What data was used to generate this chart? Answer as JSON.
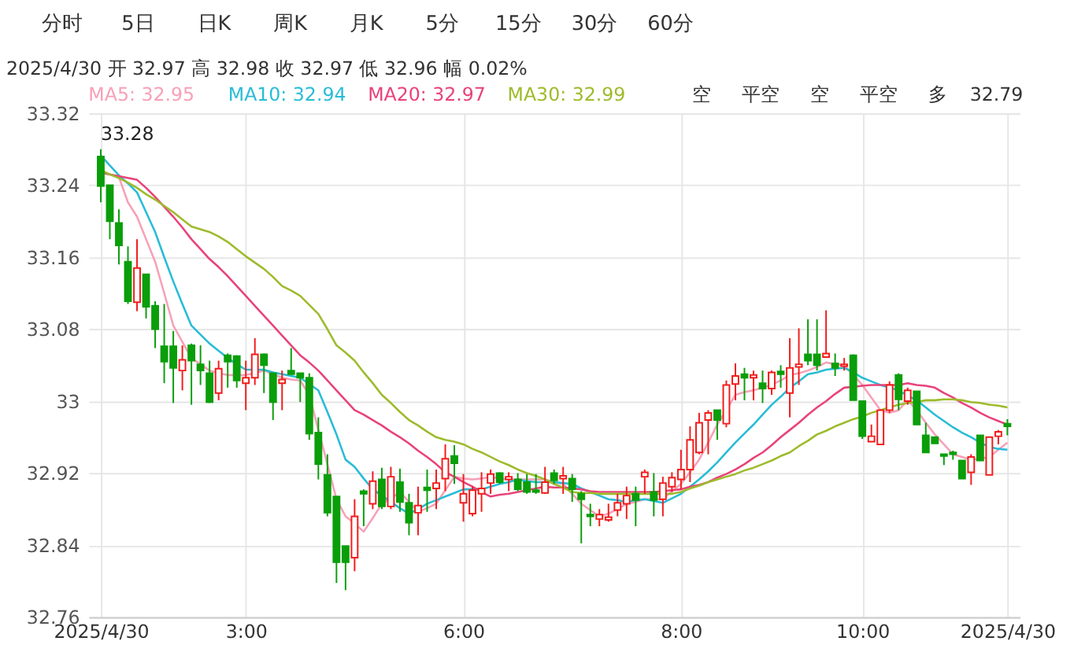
{
  "chart_data": {
    "type": "candlestick",
    "title": "2025/4/30 开 32.97 高 32.98 收 32.97 低 32.96 幅 0.02%",
    "annotations": [
      "分时",
      "5日",
      "日K",
      "周K",
      "月K",
      "5分",
      "15分",
      "30分",
      "60分",
      "空",
      "平空",
      "空",
      "平空",
      "多",
      "32.79",
      {
        "text": "33.28",
        "x": "2025/4/30",
        "y": 33.28
      }
    ],
    "categories": [
      "2025/4/30",
      null,
      null,
      null,
      null,
      null,
      null,
      null,
      null,
      null,
      null,
      null,
      null,
      null,
      null,
      null,
      "3:00",
      null,
      null,
      null,
      null,
      null,
      null,
      null,
      null,
      null,
      null,
      null,
      null,
      null,
      null,
      null,
      null,
      null,
      null,
      null,
      null,
      null,
      null,
      null,
      "6:00",
      null,
      null,
      null,
      null,
      null,
      null,
      null,
      null,
      null,
      null,
      null,
      null,
      null,
      null,
      null,
      null,
      null,
      null,
      null,
      null,
      null,
      null,
      null,
      "8:00",
      null,
      null,
      null,
      null,
      null,
      null,
      null,
      null,
      null,
      null,
      null,
      null,
      null,
      null,
      null,
      null,
      null,
      null,
      null,
      "10:00",
      null,
      null,
      null,
      null,
      null,
      null,
      null,
      null,
      null,
      null,
      null,
      null,
      null,
      null,
      null,
      "2025/4/30"
    ],
    "ohlc": [
      [
        33.272,
        33.28,
        33.221,
        33.239
      ],
      [
        33.24,
        33.24,
        33.18,
        33.2
      ],
      [
        33.198,
        33.213,
        33.152,
        33.173
      ],
      [
        33.155,
        33.172,
        33.108,
        33.111
      ],
      [
        33.11,
        33.18,
        33.1,
        33.148
      ],
      [
        33.141,
        33.141,
        33.092,
        33.105
      ],
      [
        33.106,
        33.111,
        33.059,
        33.08
      ],
      [
        33.061,
        33.108,
        33.02,
        33.044
      ],
      [
        33.061,
        33.078,
        32.998,
        33.037
      ],
      [
        33.034,
        33.062,
        33.012,
        33.046
      ],
      [
        33.062,
        33.064,
        32.996,
        33.045
      ],
      [
        33.041,
        33.062,
        33.018,
        33.034
      ],
      [
        33.031,
        33.045,
        32.998,
        32.999
      ],
      [
        33.009,
        33.045,
        33.001,
        33.036
      ],
      [
        33.051,
        33.053,
        33.015,
        33.044
      ],
      [
        33.05,
        33.051,
        33.015,
        33.023
      ],
      [
        33.02,
        33.045,
        32.99,
        33.026
      ],
      [
        33.026,
        33.07,
        33.018,
        33.052
      ],
      [
        33.052,
        33.053,
        33.009,
        33.04
      ],
      [
        33.031,
        33.031,
        32.979,
        32.999
      ],
      [
        33.02,
        33.034,
        32.99,
        33.024
      ],
      [
        33.034,
        33.059,
        33.029,
        33.03
      ],
      [
        33.031,
        33.031,
        32.999,
        33.026
      ],
      [
        33.026,
        33.031,
        32.957,
        32.964
      ],
      [
        32.965,
        32.982,
        32.913,
        32.93
      ],
      [
        32.918,
        32.941,
        32.872,
        32.876
      ],
      [
        32.894,
        32.894,
        32.798,
        32.821
      ],
      [
        32.839,
        32.839,
        32.79,
        32.821
      ],
      [
        32.826,
        32.891,
        32.811,
        32.872
      ],
      [
        32.9,
        32.902,
        32.861,
        32.897
      ],
      [
        32.886,
        32.922,
        32.88,
        32.911
      ],
      [
        32.913,
        32.926,
        32.88,
        32.883
      ],
      [
        32.883,
        32.927,
        32.88,
        32.916
      ],
      [
        32.91,
        32.925,
        32.877,
        32.888
      ],
      [
        32.887,
        32.897,
        32.851,
        32.865
      ],
      [
        32.876,
        32.905,
        32.851,
        32.884
      ],
      [
        32.904,
        32.924,
        32.877,
        32.901
      ],
      [
        32.903,
        32.924,
        32.88,
        32.909
      ],
      [
        32.914,
        32.952,
        32.9,
        32.936
      ],
      [
        32.939,
        32.951,
        32.908,
        32.931
      ],
      [
        32.887,
        32.919,
        32.866,
        32.897
      ],
      [
        32.875,
        32.905,
        32.872,
        32.901
      ],
      [
        32.897,
        32.921,
        32.877,
        32.903
      ],
      [
        32.909,
        32.924,
        32.897,
        32.919
      ],
      [
        32.92,
        32.921,
        32.908,
        32.91
      ],
      [
        32.913,
        32.921,
        32.9,
        32.916
      ],
      [
        32.913,
        32.92,
        32.9,
        32.902
      ],
      [
        32.91,
        32.919,
        32.897,
        32.899
      ],
      [
        32.901,
        32.919,
        32.897,
        32.899
      ],
      [
        32.898,
        32.927,
        32.897,
        32.91
      ],
      [
        32.92,
        32.924,
        32.908,
        32.912
      ],
      [
        32.914,
        32.927,
        32.897,
        32.917
      ],
      [
        32.914,
        32.919,
        32.888,
        32.902
      ],
      [
        32.897,
        32.9,
        32.842,
        32.891
      ],
      [
        32.874,
        32.886,
        32.861,
        32.872
      ],
      [
        32.869,
        32.88,
        32.861,
        32.874
      ],
      [
        32.868,
        32.886,
        32.866,
        32.871
      ],
      [
        32.879,
        32.897,
        32.872,
        32.887
      ],
      [
        32.886,
        32.905,
        32.869,
        32.895
      ],
      [
        32.897,
        32.905,
        32.861,
        32.89
      ],
      [
        32.916,
        32.924,
        32.897,
        32.921
      ],
      [
        32.899,
        32.92,
        32.872,
        32.89
      ],
      [
        32.891,
        32.916,
        32.872,
        32.909
      ],
      [
        32.905,
        32.921,
        32.899,
        32.915
      ],
      [
        32.913,
        32.946,
        32.902,
        32.924
      ],
      [
        32.924,
        32.972,
        32.91,
        32.957
      ],
      [
        32.943,
        32.987,
        32.941,
        32.976
      ],
      [
        32.979,
        32.99,
        32.941,
        32.987
      ],
      [
        32.99,
        32.99,
        32.957,
        32.979
      ],
      [
        32.975,
        33.023,
        32.971,
        33.018
      ],
      [
        33.019,
        33.042,
        33.001,
        33.028
      ],
      [
        33.03,
        33.037,
        33.001,
        33.026
      ],
      [
        33.026,
        33.034,
        33.001,
        33.029
      ],
      [
        33.02,
        33.034,
        32.998,
        33.014
      ],
      [
        33.014,
        33.034,
        33.007,
        33.032
      ],
      [
        33.033,
        33.04,
        33.015,
        33.03
      ],
      [
        33.009,
        33.07,
        32.982,
        33.037
      ],
      [
        33.038,
        33.081,
        33.018,
        33.041
      ],
      [
        33.052,
        33.091,
        33.04,
        33.045
      ],
      [
        33.052,
        33.091,
        33.034,
        33.04
      ],
      [
        33.049,
        33.101,
        33.049,
        33.053
      ],
      [
        33.042,
        33.053,
        33.028,
        33.037
      ],
      [
        33.039,
        33.048,
        33.034,
        33.041
      ],
      [
        33.051,
        33.052,
        33.001,
        33.001
      ],
      [
        33.0,
        33.0,
        32.958,
        32.961
      ],
      [
        32.955,
        32.974,
        32.955,
        32.961
      ],
      [
        32.952,
        32.99,
        32.952,
        32.99
      ],
      [
        32.99,
        33.022,
        32.987,
        33.018
      ],
      [
        33.029,
        33.031,
        32.99,
        33.002
      ],
      [
        33.0,
        33.015,
        32.996,
        33.012
      ],
      [
        33.011,
        33.011,
        32.974,
        32.974
      ],
      [
        32.962,
        32.976,
        32.943,
        32.943
      ],
      [
        32.96,
        32.96,
        32.953,
        32.953
      ],
      [
        32.941,
        32.941,
        32.929,
        32.939
      ],
      [
        32.943,
        32.945,
        32.935,
        32.941
      ],
      [
        32.934,
        32.934,
        32.914,
        32.914
      ],
      [
        32.921,
        32.941,
        32.907,
        32.938
      ],
      [
        32.962,
        32.962,
        32.934,
        32.934
      ],
      [
        32.918,
        32.96,
        32.918,
        32.96
      ],
      [
        32.961,
        32.968,
        32.952,
        32.966
      ],
      [
        32.975,
        32.98,
        32.962,
        32.972
      ]
    ],
    "series": [
      {
        "name": "MA5: 32.95",
        "type": "line",
        "color": "#f7a1b8",
        "values": [
          33.254,
          33.252,
          33.249,
          33.221,
          33.205,
          33.18,
          33.155,
          33.12,
          33.084,
          33.066,
          33.048,
          33.041,
          33.034,
          33.031,
          33.029,
          33.029,
          33.029,
          33.031,
          33.034,
          33.03,
          33.026,
          33.024,
          33.023,
          33.007,
          32.968,
          32.93,
          32.891,
          32.872,
          32.864,
          32.855,
          32.87,
          32.886,
          32.892,
          32.899,
          32.888,
          32.877,
          32.881,
          32.886,
          32.901,
          32.916,
          32.914,
          32.913,
          32.914,
          32.916,
          32.914,
          32.913,
          32.913,
          32.913,
          32.913,
          32.913,
          32.91,
          32.908,
          32.897,
          32.886,
          32.879,
          32.872,
          32.875,
          32.88,
          32.886,
          32.888,
          32.891,
          32.891,
          32.891,
          32.9,
          32.908,
          32.921,
          32.935,
          32.954,
          32.974,
          32.99,
          33.007,
          33.01,
          33.012,
          33.015,
          33.018,
          33.023,
          33.029,
          33.031,
          33.034,
          33.038,
          33.043,
          33.041,
          33.04,
          33.029,
          33.018,
          33.004,
          32.99,
          32.987,
          32.99,
          33.001,
          32.99,
          32.976,
          32.963,
          32.952,
          32.941,
          32.938,
          32.935,
          32.936,
          32.938,
          32.946,
          32.954
        ]
      },
      {
        "name": "MA10: 32.94",
        "type": "line",
        "color": "#29bcd6",
        "values": [
          33.273,
          33.262,
          33.251,
          33.242,
          33.232,
          33.21,
          33.188,
          33.16,
          33.133,
          33.108,
          33.084,
          33.074,
          33.064,
          33.056,
          33.048,
          33.041,
          33.035,
          33.035,
          33.035,
          33.032,
          33.03,
          33.028,
          33.026,
          33.019,
          33.012,
          32.988,
          32.963,
          32.935,
          32.927,
          32.914,
          32.902,
          32.895,
          32.888,
          32.881,
          32.875,
          32.88,
          32.886,
          32.89,
          32.894,
          32.898,
          32.902,
          32.902,
          32.902,
          32.905,
          32.908,
          32.91,
          32.913,
          32.911,
          32.91,
          32.91,
          32.91,
          32.909,
          32.908,
          32.903,
          32.899,
          32.895,
          32.891,
          32.89,
          32.888,
          32.89,
          32.891,
          32.889,
          32.887,
          32.892,
          32.897,
          32.905,
          32.913,
          32.922,
          32.932,
          32.943,
          32.954,
          32.964,
          32.974,
          32.985,
          32.996,
          33.005,
          33.015,
          33.022,
          33.03,
          33.032,
          33.035,
          33.036,
          33.037,
          33.032,
          33.026,
          33.022,
          33.018,
          33.015,
          33.012,
          33.006,
          33.001,
          32.993,
          32.985,
          32.978,
          32.971,
          32.965,
          32.96,
          32.954,
          32.949,
          32.947,
          32.946
        ]
      },
      {
        "name": "MA20: 32.97",
        "type": "line",
        "color": "#e8437a",
        "values": [
          33.254,
          33.252,
          33.25,
          33.248,
          33.246,
          33.237,
          33.227,
          33.216,
          33.205,
          33.193,
          33.18,
          33.169,
          33.158,
          33.149,
          33.139,
          33.128,
          33.117,
          33.106,
          33.095,
          33.084,
          33.073,
          33.062,
          33.051,
          33.043,
          33.034,
          33.023,
          33.012,
          33.001,
          32.99,
          32.985,
          32.979,
          32.973,
          32.966,
          32.96,
          32.953,
          32.945,
          32.938,
          32.93,
          32.921,
          32.916,
          32.91,
          32.905,
          32.899,
          32.894,
          32.896,
          32.897,
          32.899,
          32.901,
          32.903,
          32.905,
          32.904,
          32.904,
          32.903,
          32.902,
          32.9,
          32.899,
          32.899,
          32.899,
          32.899,
          32.899,
          32.899,
          32.899,
          32.9,
          32.901,
          32.902,
          32.905,
          32.907,
          32.91,
          32.915,
          32.919,
          32.924,
          32.93,
          32.937,
          32.943,
          32.951,
          32.96,
          32.968,
          32.976,
          32.985,
          32.993,
          33.0,
          33.008,
          33.015,
          33.016,
          33.017,
          33.018,
          33.018,
          33.018,
          33.018,
          33.02,
          33.018,
          33.017,
          33.015,
          33.009,
          33.004,
          32.998,
          32.993,
          32.987,
          32.982,
          32.978,
          32.974
        ]
      },
      {
        "name": "MA30: 32.99",
        "type": "line",
        "color": "#9dbb2c",
        "values": [
          33.257,
          33.252,
          33.248,
          33.243,
          33.237,
          33.23,
          33.224,
          33.217,
          33.21,
          33.202,
          33.194,
          33.191,
          33.188,
          33.183,
          33.177,
          33.169,
          33.161,
          33.154,
          33.147,
          33.138,
          33.128,
          33.123,
          33.117,
          33.107,
          33.097,
          33.08,
          33.062,
          33.054,
          33.045,
          33.032,
          33.02,
          33.007,
          32.998,
          32.988,
          32.979,
          32.973,
          32.966,
          32.96,
          32.957,
          32.955,
          32.952,
          32.947,
          32.943,
          32.938,
          32.933,
          32.929,
          32.924,
          32.92,
          32.917,
          32.913,
          32.908,
          32.904,
          32.899,
          32.898,
          32.898,
          32.897,
          32.897,
          32.897,
          32.897,
          32.897,
          32.897,
          32.897,
          32.897,
          32.897,
          32.899,
          32.903,
          32.906,
          32.91,
          32.913,
          32.916,
          32.919,
          32.923,
          32.926,
          32.93,
          32.934,
          32.939,
          32.943,
          32.95,
          32.956,
          32.963,
          32.967,
          32.972,
          32.976,
          32.98,
          32.983,
          32.987,
          32.99,
          32.993,
          32.996,
          32.998,
          32.999,
          33.001,
          33.001,
          33.002,
          33.002,
          33.001,
          32.999,
          32.998,
          32.996,
          32.995,
          32.993
        ]
      }
    ],
    "ylim": [
      32.76,
      33.32
    ],
    "yticks": [
      32.76,
      32.84,
      32.92,
      33,
      33.08,
      33.16,
      33.24,
      33.32
    ],
    "grid": true,
    "legend": "top",
    "marker": "none",
    "line_style": "solid"
  }
}
